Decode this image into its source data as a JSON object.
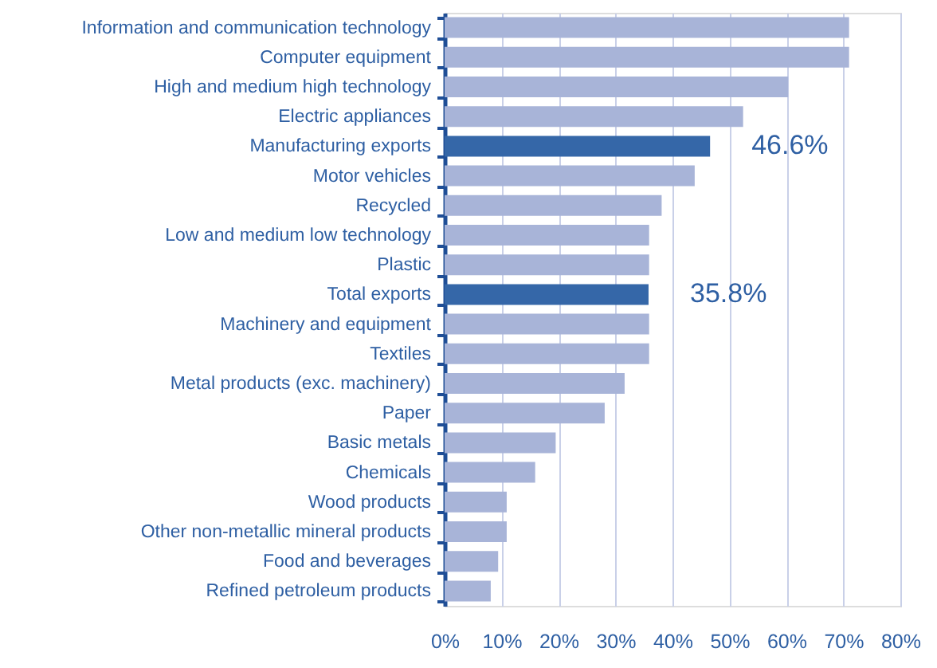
{
  "chart_data": {
    "type": "bar",
    "orientation": "horizontal",
    "categories": [
      "Information and communication technology",
      "Computer equipment",
      "High and medium high technology",
      "Electric appliances",
      "Manufacturing exports",
      "Motor vehicles",
      "Recycled",
      "Low and medium low technology",
      "Plastic",
      "Total exports",
      "Machinery and equipment",
      "Textiles",
      "Metal products (exc. machinery)",
      "Paper",
      "Basic metals",
      "Chemicals",
      "Wood products",
      "Other non-metallic mineral products",
      "Food and beverages",
      "Refined petroleum products"
    ],
    "values": [
      71.0,
      71.0,
      60.3,
      52.4,
      46.6,
      43.9,
      38.1,
      35.9,
      35.9,
      35.8,
      35.9,
      35.9,
      31.6,
      28.1,
      19.5,
      15.9,
      10.9,
      10.9,
      9.4,
      8.1
    ],
    "colors": [
      "#a8b4d8",
      "#a8b4d8",
      "#a8b4d8",
      "#a8b4d8",
      "#3567a8",
      "#a8b4d8",
      "#a8b4d8",
      "#a8b4d8",
      "#a8b4d8",
      "#3567a8",
      "#a8b4d8",
      "#a8b4d8",
      "#a8b4d8",
      "#a8b4d8",
      "#a8b4d8",
      "#a8b4d8",
      "#a8b4d8",
      "#a8b4d8",
      "#a8b4d8",
      "#a8b4d8"
    ],
    "value_labels": [
      null,
      null,
      null,
      null,
      "46.6%",
      null,
      null,
      null,
      null,
      "35.8%",
      null,
      null,
      null,
      null,
      null,
      null,
      null,
      null,
      null,
      null
    ],
    "xlim": [
      0,
      80
    ],
    "xticks": [
      {
        "value": 0,
        "label": "0%"
      },
      {
        "value": 10,
        "label": "10%"
      },
      {
        "value": 20,
        "label": "20%"
      },
      {
        "value": 30,
        "label": "30%"
      },
      {
        "value": 40,
        "label": "40%"
      },
      {
        "value": 50,
        "label": "50%"
      },
      {
        "value": 60,
        "label": "60%"
      },
      {
        "value": 70,
        "label": "70%"
      },
      {
        "value": 80,
        "label": "80%"
      }
    ],
    "grid": "x"
  }
}
